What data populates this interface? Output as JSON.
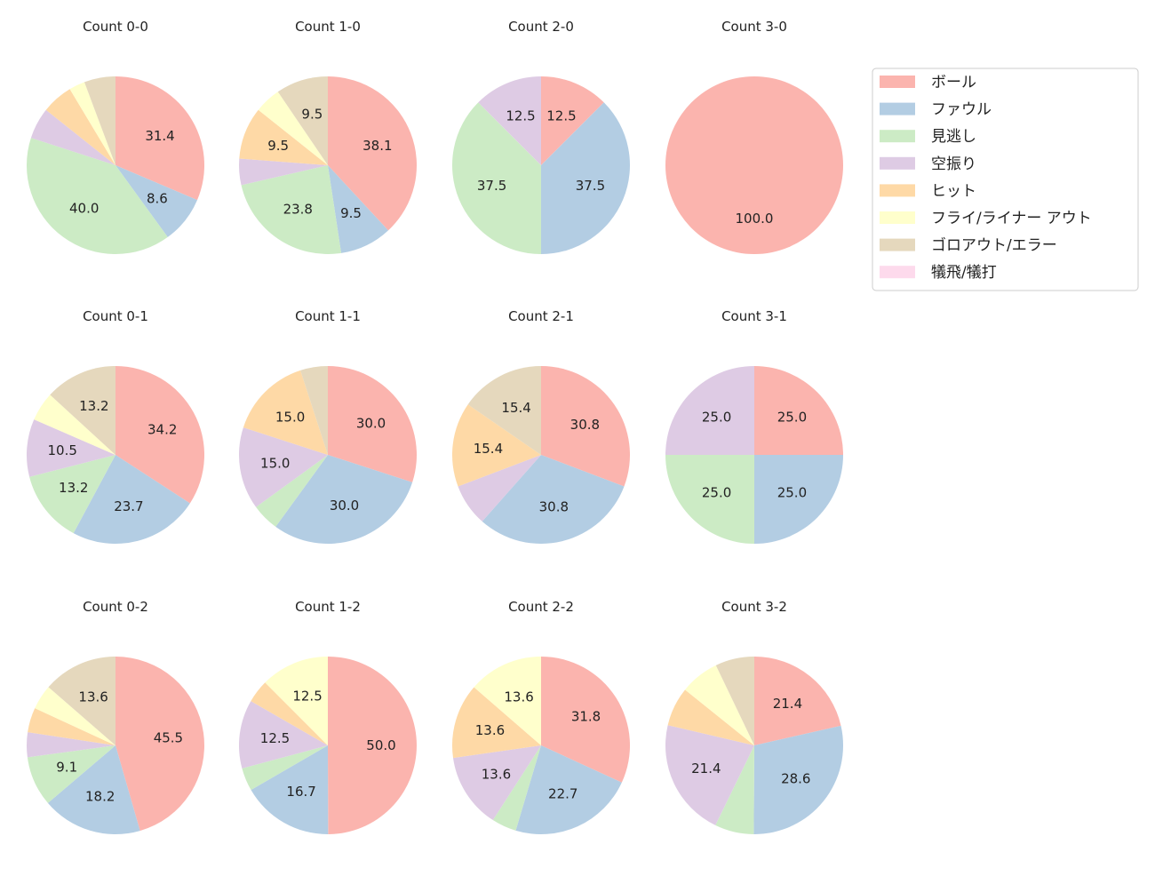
{
  "chart_data": {
    "type": "pie",
    "start_angle_deg": 90,
    "direction": "clockwise",
    "label_format": "%.1f",
    "legend": {
      "placement": "right",
      "entries": [
        "ボール",
        "ファウル",
        "見逃し",
        "空振り",
        "ヒット",
        "フライ/ライナー アウト",
        "ゴロアウト/エラー",
        "犠飛/犠打"
      ]
    },
    "colors": [
      "#fbb4ae",
      "#b3cde3",
      "#ccebc5",
      "#decbe4",
      "#fed9a6",
      "#ffffcc",
      "#e5d8bd",
      "#fddaec"
    ],
    "charts": [
      {
        "title": "Count 0-0",
        "values": [
          31.4,
          8.6,
          40.0,
          5.7,
          5.7,
          2.9,
          5.7,
          0
        ]
      },
      {
        "title": "Count 1-0",
        "values": [
          38.1,
          9.5,
          23.8,
          4.8,
          9.5,
          4.8,
          9.5,
          0
        ]
      },
      {
        "title": "Count 2-0",
        "values": [
          12.5,
          37.5,
          37.5,
          12.5,
          0,
          0,
          0,
          0
        ]
      },
      {
        "title": "Count 3-0",
        "values": [
          100.0,
          0,
          0,
          0,
          0,
          0,
          0,
          0
        ]
      },
      {
        "title": "Count 0-1",
        "values": [
          34.2,
          23.7,
          13.2,
          10.5,
          0,
          5.3,
          13.2,
          0
        ]
      },
      {
        "title": "Count 1-1",
        "values": [
          30.0,
          30.0,
          5.0,
          15.0,
          15.0,
          0,
          5.0,
          0
        ]
      },
      {
        "title": "Count 2-1",
        "values": [
          30.8,
          30.8,
          0,
          7.7,
          15.4,
          0,
          15.4,
          0
        ]
      },
      {
        "title": "Count 3-1",
        "values": [
          25.0,
          25.0,
          25.0,
          25.0,
          0,
          0,
          0,
          0
        ]
      },
      {
        "title": "Count 0-2",
        "values": [
          45.5,
          18.2,
          9.1,
          4.5,
          4.5,
          4.5,
          13.6,
          0
        ]
      },
      {
        "title": "Count 1-2",
        "values": [
          50.0,
          16.7,
          4.2,
          12.5,
          4.2,
          12.5,
          0,
          0
        ]
      },
      {
        "title": "Count 2-2",
        "values": [
          31.8,
          22.7,
          4.5,
          13.6,
          13.6,
          13.6,
          0,
          0
        ]
      },
      {
        "title": "Count 3-2",
        "values": [
          21.4,
          28.6,
          7.1,
          21.4,
          7.1,
          7.1,
          7.1,
          0
        ]
      }
    ]
  }
}
